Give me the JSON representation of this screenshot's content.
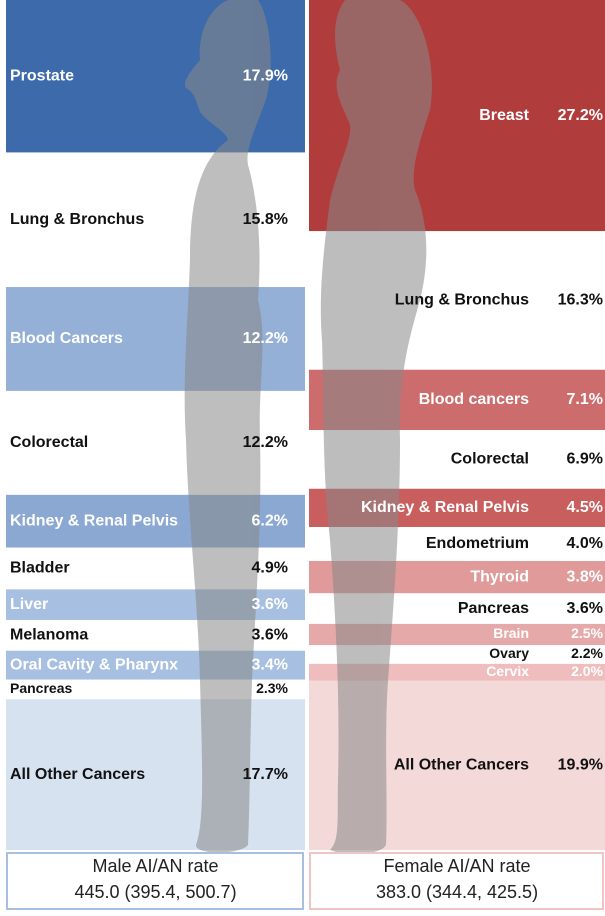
{
  "chart_data": [
    {
      "type": "proportion",
      "categories": [
        "Prostate",
        "Lung & Bronchus",
        "Blood Cancers",
        "Colorectal",
        "Kidney & Renal Pelvis",
        "Bladder",
        "Liver",
        "Melanoma",
        "Oral Cavity & Pharynx",
        "Pancreas",
        "All Other Cancers"
      ],
      "values": [
        17.9,
        15.8,
        12.2,
        12.2,
        6.2,
        4.9,
        3.6,
        3.6,
        3.4,
        2.3,
        17.7
      ],
      "value_labels": [
        "17.9%",
        "15.8%",
        "12.2%",
        "12.2%",
        "6.2%",
        "4.9%",
        "3.6%",
        "3.6%",
        "3.4%",
        "2.3%",
        "17.7%"
      ],
      "colors": [
        "#3d6aab",
        "#ffffff",
        "#94b0d7",
        "#ffffff",
        "#8ba8d2",
        "#ffffff",
        "#a7bfe1",
        "#ffffff",
        "#a7bfe1",
        "#ffffff",
        "#d7e2f1"
      ],
      "label_colors": [
        "#ffffff",
        "#111111",
        "#ffffff",
        "#111111",
        "#ffffff",
        "#111111",
        "#ffffff",
        "#111111",
        "#ffffff",
        "#111111",
        "#111111"
      ],
      "rate_label": "Male AI/AN rate",
      "rate": "445.0 (395.4, 500.7)",
      "border_color": "#a7bfe1"
    },
    {
      "type": "proportion",
      "categories": [
        "Breast",
        "Lung & Bronchus",
        "Blood cancers",
        "Colorectal",
        "Kidney & Renal Pelvis",
        "Endometrium",
        "Thyroid",
        "Pancreas",
        "Brain",
        "Ovary",
        "Cervix",
        "All Other  Cancers"
      ],
      "values": [
        27.2,
        16.3,
        7.1,
        6.9,
        4.5,
        4.0,
        3.8,
        3.6,
        2.5,
        2.2,
        2.0,
        19.9
      ],
      "value_labels": [
        "27.2%",
        "16.3%",
        "7.1%",
        "6.9%",
        "4.5%",
        "4.0%",
        "3.8%",
        "3.6%",
        "2.5%",
        "2.2%",
        "2.0%",
        "19.9%"
      ],
      "colors": [
        "#b13c3c",
        "#ffffff",
        "#cd6c6c",
        "#ffffff",
        "#c95e5e",
        "#ffffff",
        "#e09a9a",
        "#ffffff",
        "#e6a9a9",
        "#ffffff",
        "#efbdbd",
        "#f4d9d9"
      ],
      "label_colors": [
        "#ffffff",
        "#111111",
        "#ffffff",
        "#111111",
        "#ffffff",
        "#111111",
        "#ffffff",
        "#111111",
        "#ffffff",
        "#111111",
        "#ffffff",
        "#111111"
      ],
      "rate_label": "Female AI/AN rate",
      "rate": "383.0 (344.4, 425.5)",
      "border_color": "#f0c4c4"
    }
  ]
}
